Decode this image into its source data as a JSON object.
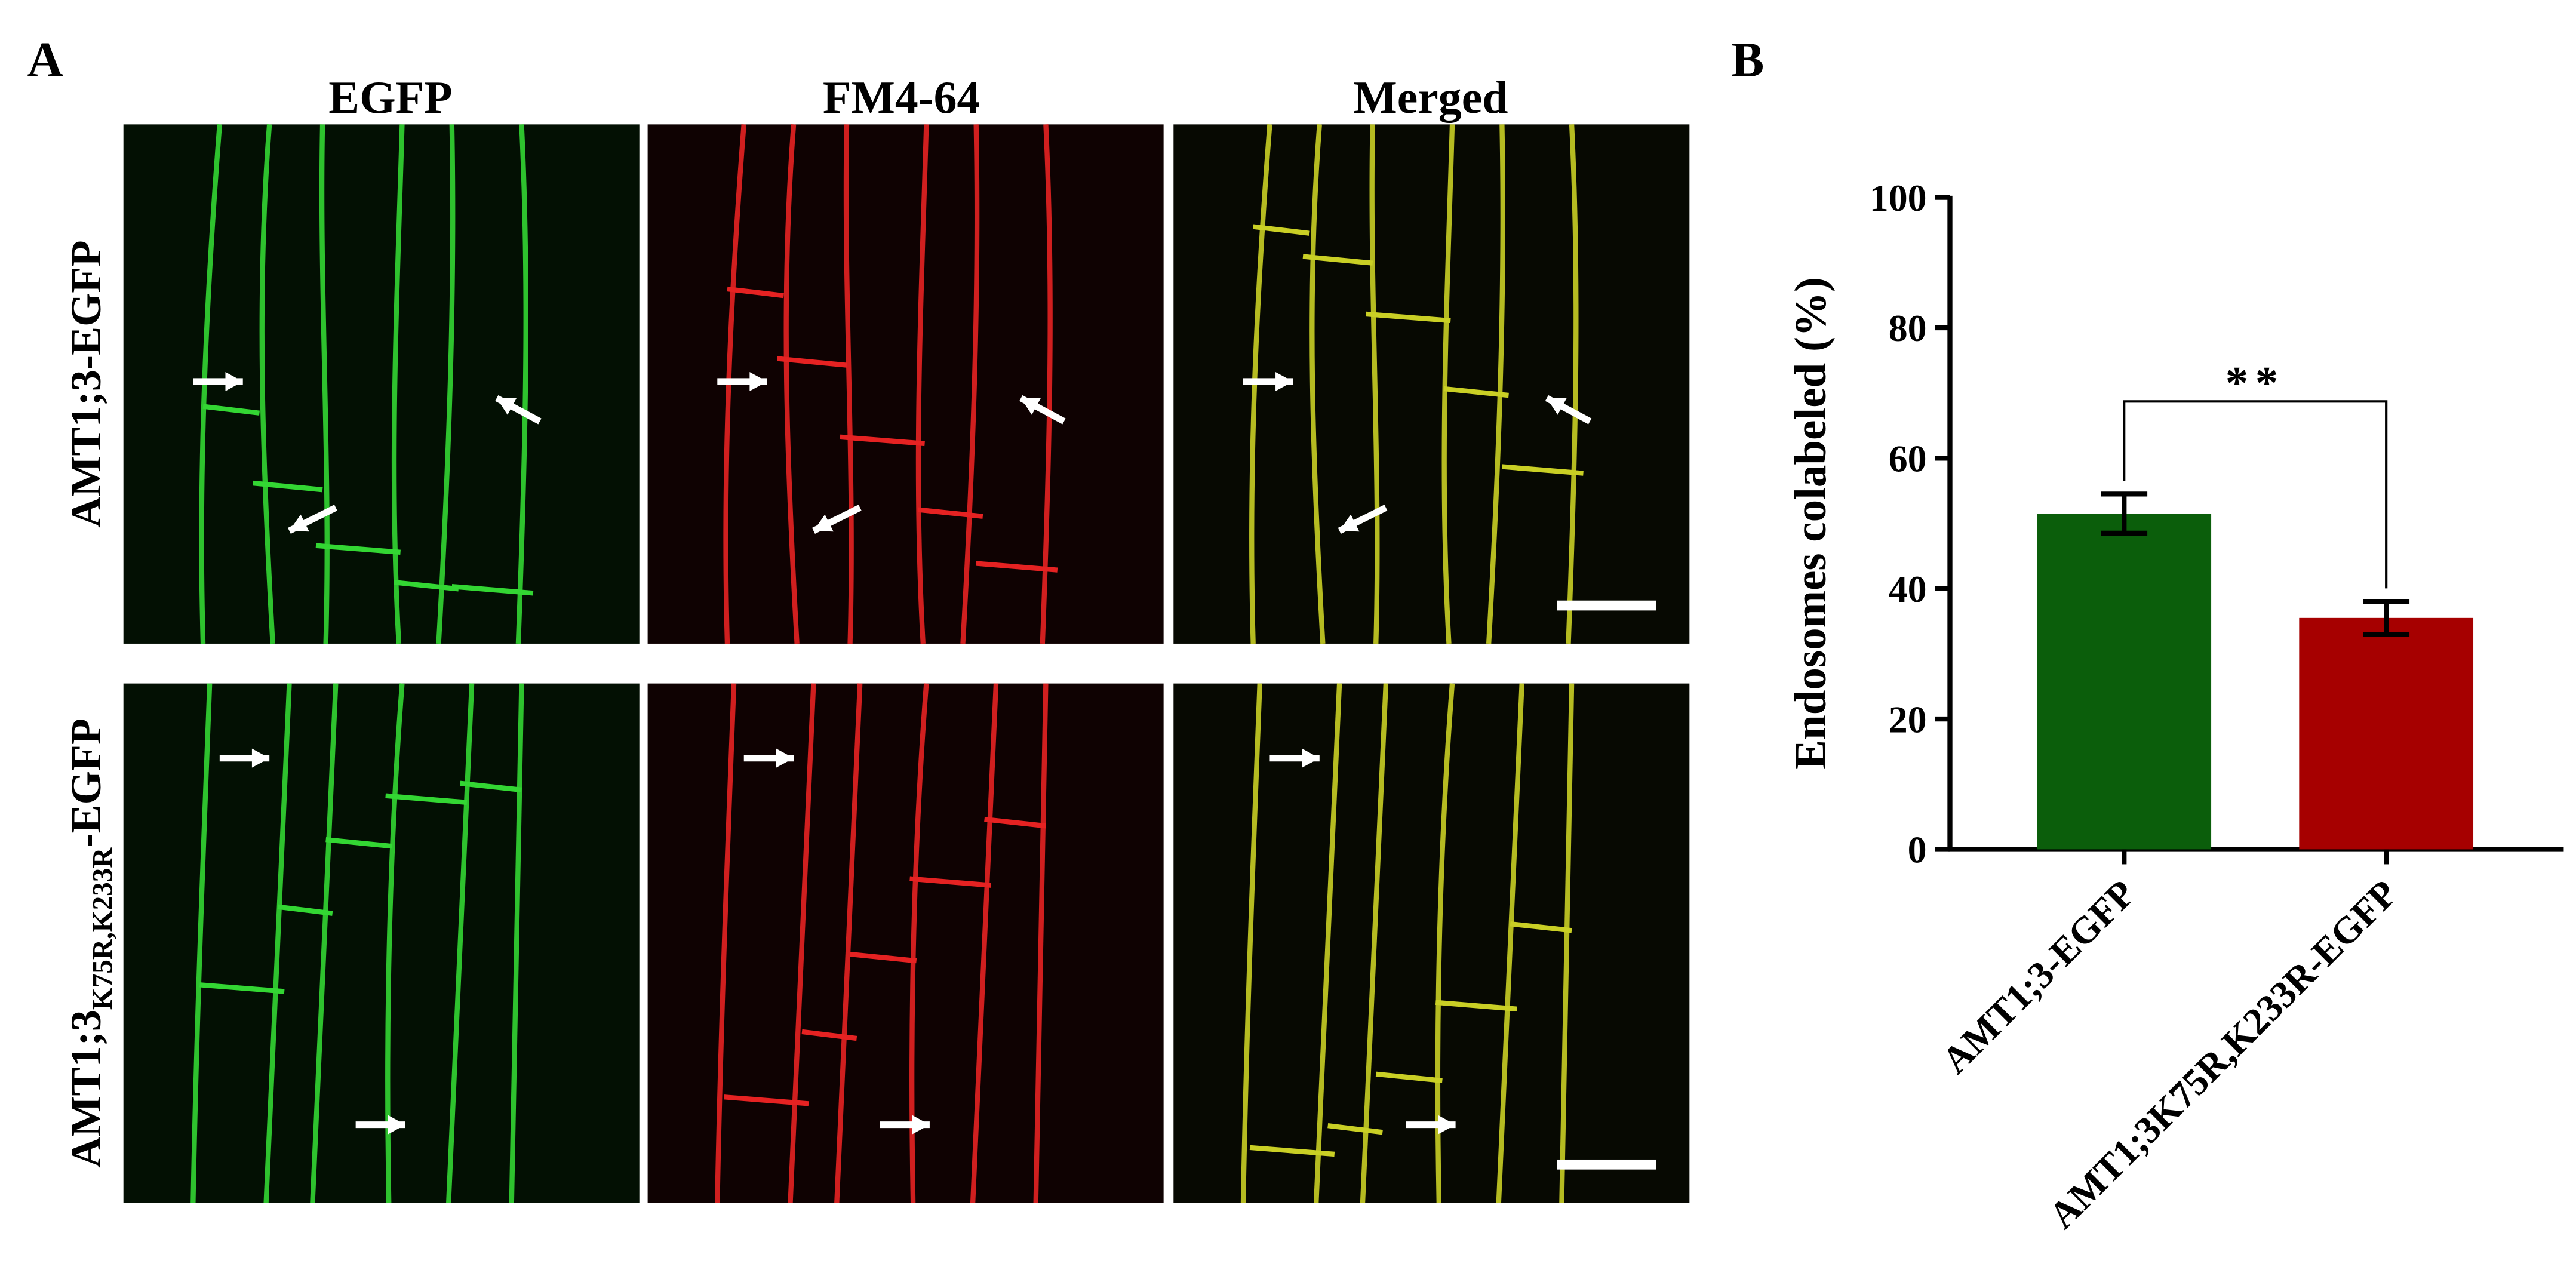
{
  "panel_a": {
    "label": "A",
    "column_titles": [
      "EGFP",
      "FM4-64",
      "Merged"
    ],
    "row_labels": [
      {
        "main": "AMT1;3-EGFP"
      },
      {
        "main": "AMT1;3",
        "subscript": "K75R,K233R",
        "suffix": "-EGFP"
      }
    ]
  },
  "chart_data": {
    "type": "bar",
    "panel_label": "B",
    "ylabel": "Endosomes colabeled (%)",
    "categories": [
      "AMT1;3-EGFP",
      "AMT1;3K75R,K233R-EGFP"
    ],
    "values": [
      51.5,
      35.5
    ],
    "errors": [
      3,
      2.5
    ],
    "colors": [
      "#0b5e0b",
      "#a60000"
    ],
    "ylim": [
      0,
      100
    ],
    "yticks": [
      0,
      20,
      40,
      60,
      80,
      100
    ],
    "grid": false,
    "annotation": "**"
  }
}
